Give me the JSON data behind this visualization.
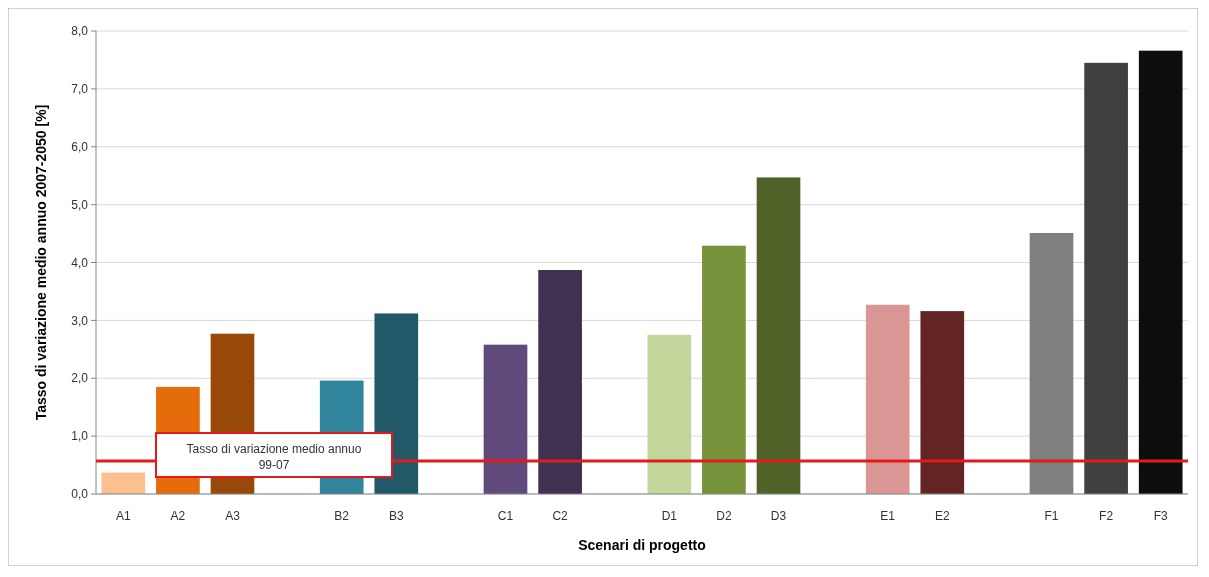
{
  "chart_data": {
    "type": "bar",
    "xlabel": "Scenari di progetto",
    "ylabel": "Tasso di variazione medio annuo 2007-2050 [%]",
    "categories": [
      "A1",
      "A2",
      "A3",
      null,
      "B2",
      "B3",
      null,
      "C1",
      "C2",
      null,
      "D1",
      "D2",
      "D3",
      null,
      "E1",
      "E2",
      null,
      "F1",
      "F2",
      "F3"
    ],
    "values": [
      0.37,
      1.85,
      2.77,
      null,
      1.96,
      3.12,
      null,
      2.58,
      3.87,
      null,
      2.75,
      4.29,
      5.47,
      null,
      3.27,
      3.16,
      null,
      4.51,
      7.45,
      7.66
    ],
    "colors": [
      "#fac090",
      "#e46c0a",
      "#984807",
      null,
      "#31859c",
      "#215968",
      null,
      "#604a7b",
      "#403151",
      null,
      "#c3d69b",
      "#77933c",
      "#4f6228",
      null,
      "#d99694",
      "#632523",
      null,
      "#7f7f7f",
      "#404040",
      "#0d0d0d"
    ],
    "ylim": [
      0,
      8
    ],
    "yticks": [
      {
        "value": 0,
        "label": "0,0"
      },
      {
        "value": 1,
        "label": "1,0"
      },
      {
        "value": 2,
        "label": "2,0"
      },
      {
        "value": 3,
        "label": "3,0"
      },
      {
        "value": 4,
        "label": "4,0"
      },
      {
        "value": 5,
        "label": "5,0"
      },
      {
        "value": 6,
        "label": "6,0"
      },
      {
        "value": 7,
        "label": "7,0"
      },
      {
        "value": 8,
        "label": "8,0"
      }
    ],
    "grid": "y",
    "ref_lines": [
      {
        "axis": "y",
        "value": 0.57,
        "label": "Tasso di variazione medio annuo\n99-07",
        "color": "#e31a1c"
      }
    ]
  }
}
